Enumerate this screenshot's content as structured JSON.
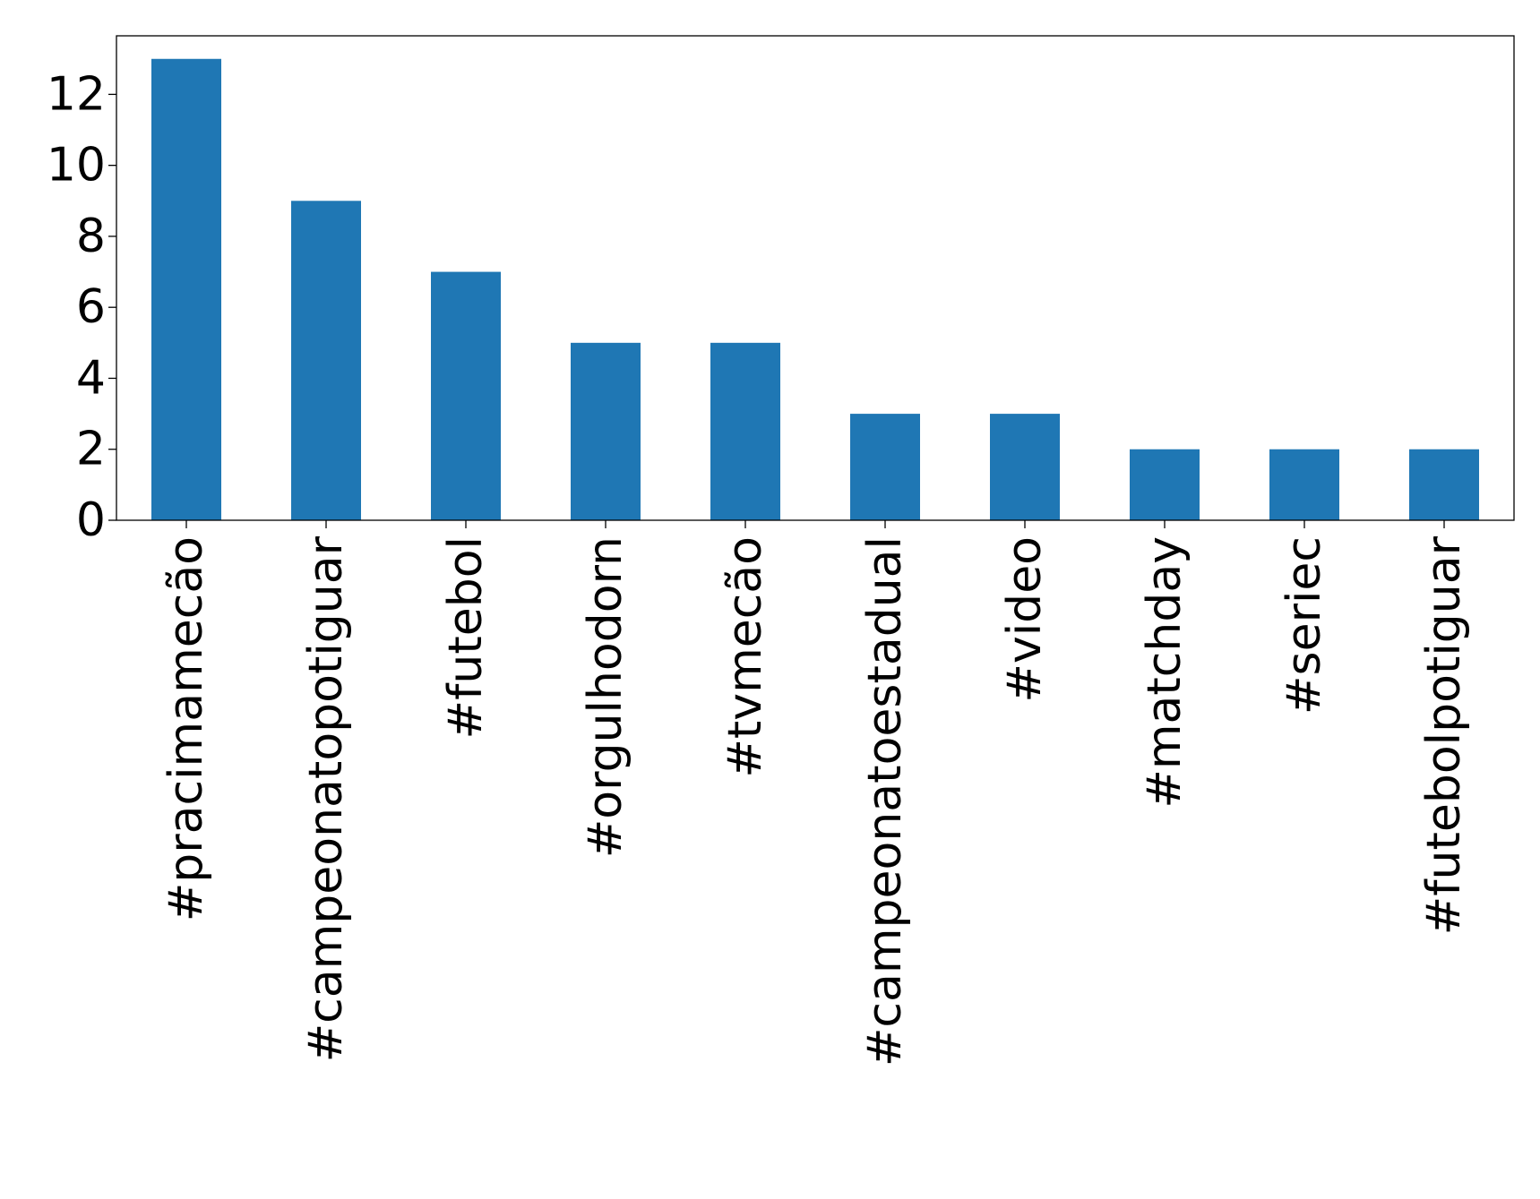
{
  "chart_data": {
    "type": "bar",
    "categories": [
      "#pracimamecão",
      "#campeonatopotiguar",
      "#futebol",
      "#orgulhodorn",
      "#tvmecão",
      "#campeonatoestadual",
      "#video",
      "#matchday",
      "#seriec",
      "#futebolpotiguar"
    ],
    "values": [
      13,
      9,
      7,
      5,
      5,
      3,
      3,
      2,
      2,
      2
    ],
    "title": "",
    "xlabel": "",
    "ylabel": "",
    "ylim": [
      0,
      13.65
    ],
    "yticks": [
      0,
      2,
      4,
      6,
      8,
      10,
      12
    ],
    "bar_color": "#1f77b4",
    "grid": false,
    "legend": "none"
  }
}
